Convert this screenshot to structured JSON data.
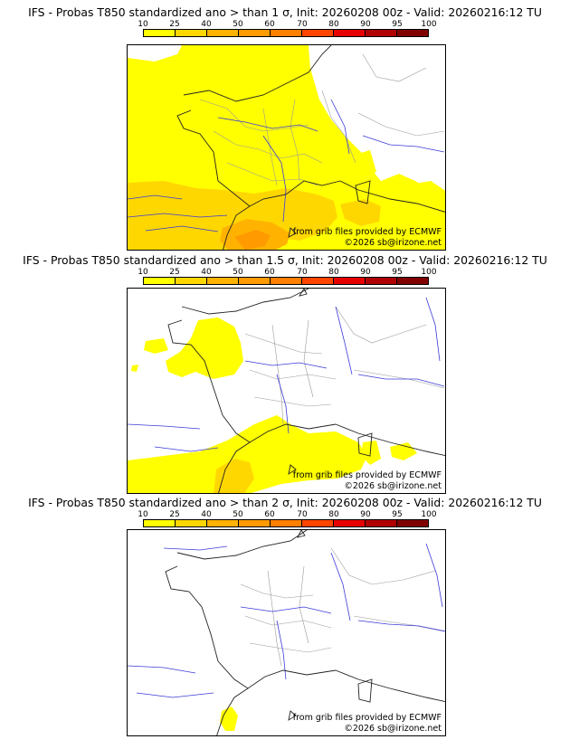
{
  "colorbar": {
    "ticks": [
      "10",
      "25",
      "40",
      "50",
      "60",
      "70",
      "80",
      "90",
      "95",
      "100"
    ],
    "colors": [
      "#ffff00",
      "#ffd700",
      "#ffb300",
      "#ff9a00",
      "#ff7f00",
      "#ff4500",
      "#e60000",
      "#b00000",
      "#800000"
    ]
  },
  "panels": [
    {
      "title": "IFS - Probas T850  standardized ano > than 1 σ, Init: 20260208 00z - Valid: 20260216:12 TU",
      "source_credit": "from grib files provided by ECMWF",
      "copyright": "©2026 sb@irizone.net"
    },
    {
      "title": "IFS - Probas T850  standardized ano > than 1.5 σ, Init: 20260208 00z - Valid: 20260216:12 TU",
      "source_credit": "from grib files provided by ECMWF",
      "copyright": "©2026 sb@irizone.net"
    },
    {
      "title": "IFS - Probas T850  standardized ano > than 2 σ, Init: 20260208 00z - Valid: 20260216:12 TU",
      "source_credit": "from grib files provided by ECMWF",
      "copyright": "©2026 sb@irizone.net"
    }
  ]
}
